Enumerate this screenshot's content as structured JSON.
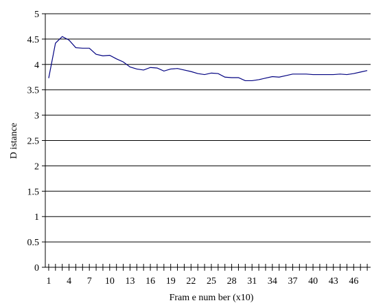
{
  "chart_data": {
    "type": "line",
    "title": "",
    "xlabel": "Fram e num ber (x10)",
    "ylabel": "D istance",
    "x": [
      1,
      2,
      3,
      4,
      5,
      6,
      7,
      8,
      9,
      10,
      11,
      12,
      13,
      14,
      15,
      16,
      17,
      18,
      19,
      20,
      21,
      22,
      23,
      24,
      25,
      26,
      27,
      28,
      29,
      30,
      31,
      32,
      33,
      34,
      35,
      36,
      37,
      38,
      39,
      40,
      41,
      42,
      43,
      44,
      45,
      46,
      47,
      48
    ],
    "x_tick_labels": [
      "1",
      "4",
      "7",
      "10",
      "13",
      "16",
      "19",
      "22",
      "25",
      "28",
      "31",
      "34",
      "37",
      "40",
      "43",
      "46"
    ],
    "y_tick_labels": [
      "0",
      "0.5",
      "1",
      "1.5",
      "2",
      "2.5",
      "3",
      "3.5",
      "4",
      "4.5",
      "5"
    ],
    "ylim": [
      0,
      5
    ],
    "xlim": [
      0.5,
      48.5
    ],
    "grid": "horizontal",
    "series": [
      {
        "color": "#000080",
        "values": [
          3.73,
          4.42,
          4.55,
          4.48,
          4.33,
          4.32,
          4.32,
          4.2,
          4.17,
          4.18,
          4.11,
          4.05,
          3.95,
          3.91,
          3.89,
          3.94,
          3.93,
          3.87,
          3.91,
          3.92,
          3.89,
          3.86,
          3.82,
          3.8,
          3.83,
          3.82,
          3.75,
          3.74,
          3.74,
          3.68,
          3.68,
          3.7,
          3.73,
          3.76,
          3.75,
          3.78,
          3.81,
          3.81,
          3.81,
          3.8,
          3.8,
          3.8,
          3.8,
          3.81,
          3.8,
          3.82,
          3.85,
          3.88
        ]
      }
    ]
  }
}
